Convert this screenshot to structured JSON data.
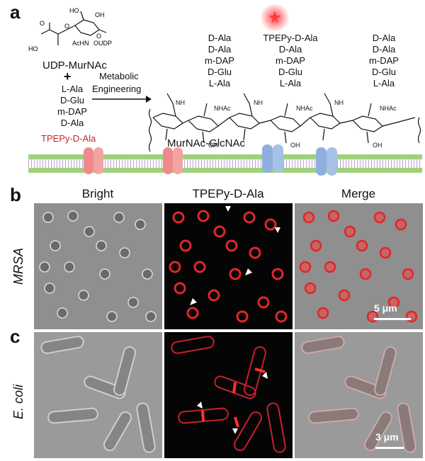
{
  "panel_a": {
    "letter": "a",
    "precursor": "UDP-MurNAc",
    "plus": "+",
    "reagents": [
      "L-Ala",
      "D-Glu",
      "m-DAP",
      "D-Ala"
    ],
    "probe": "TPEPy-D-Ala",
    "arrow_label_1": "Metabolic",
    "arrow_label_2": "Engineering",
    "udp_struct_labels": [
      "HO",
      "OH",
      "O",
      "O",
      "AcHN",
      "OUDP",
      "HO",
      "O"
    ],
    "backbone_label": "MurNAc-GlcNAc",
    "nhac": "NHAc",
    "oh": "OH",
    "nh": "NH",
    "stems": [
      [
        "D-Ala",
        "D-Ala",
        "m-DAP",
        "D-Glu",
        "L-Ala"
      ],
      [
        "TPEPy-D-Ala",
        "D-Ala",
        "m-DAP",
        "D-Glu",
        "L-Ala"
      ],
      [
        "D-Ala",
        "D-Ala",
        "m-DAP",
        "D-Glu",
        "L-Ala"
      ]
    ]
  },
  "panel_b": {
    "letter": "b",
    "row_label": "MRSA",
    "columns": [
      "Bright",
      "TPEPy-D-Ala",
      "Merge"
    ],
    "scale": "5 μm"
  },
  "panel_c": {
    "letter": "c",
    "row_label": "E. coli",
    "scale": "3 μm"
  },
  "colors": {
    "fluorescence": "#e0262a",
    "membrane_bead": "#9ecf7a",
    "channel_red": "#f08a8a",
    "channel_blue": "#8fb0dd"
  }
}
